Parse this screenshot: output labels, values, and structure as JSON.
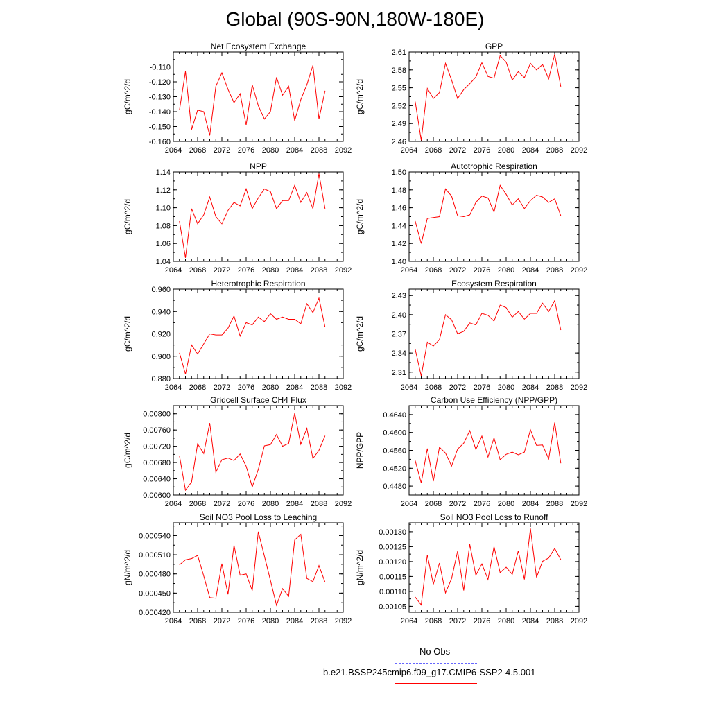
{
  "figure": {
    "title": "Global (90S-90N,180W-180E)"
  },
  "legend": {
    "obs_label": "No Obs",
    "obs_color": "#6666ff",
    "model_label": "b.e21.BSSP245cmip6.f09_g17.CMIP6-SSP2-4.5.001",
    "model_color": "#ff0000"
  },
  "chart_data": [
    {
      "type": "line",
      "title": "Net Ecosystem Exchange",
      "ylabel": "gC/m^2/d",
      "xlim": [
        2064,
        2092
      ],
      "xticks": [
        "2064",
        "2068",
        "2072",
        "2076",
        "2080",
        "2084",
        "2088",
        "2092"
      ],
      "ylim": [
        -0.16,
        -0.1
      ],
      "yticks": [
        "-0.110",
        "-0.120",
        "-0.130",
        "-0.140",
        "-0.150",
        "-0.160"
      ],
      "ytick_values": [
        -0.11,
        -0.12,
        -0.13,
        -0.14,
        -0.15,
        -0.16
      ],
      "x": [
        2065,
        2066,
        2067,
        2068,
        2069,
        2070,
        2071,
        2072,
        2073,
        2074,
        2075,
        2076,
        2077,
        2078,
        2079,
        2080,
        2081,
        2082,
        2083,
        2084,
        2085,
        2086,
        2087,
        2088,
        2089
      ],
      "series": [
        {
          "color": "#ff0000",
          "values": [
            -0.139,
            -0.113,
            -0.152,
            -0.139,
            -0.14,
            -0.156,
            -0.123,
            -0.114,
            -0.125,
            -0.134,
            -0.128,
            -0.149,
            -0.122,
            -0.136,
            -0.145,
            -0.14,
            -0.117,
            -0.129,
            -0.123,
            -0.146,
            -0.132,
            -0.122,
            -0.109,
            -0.145,
            -0.126
          ]
        }
      ]
    },
    {
      "type": "line",
      "title": "GPP",
      "ylabel": "gC/m^2/d",
      "xlim": [
        2064,
        2092
      ],
      "xticks": [
        "2064",
        "2068",
        "2072",
        "2076",
        "2080",
        "2084",
        "2088",
        "2092"
      ],
      "ylim": [
        2.46,
        2.61
      ],
      "yticks": [
        "2.61",
        "2.58",
        "2.55",
        "2.52",
        "2.49",
        "2.46"
      ],
      "ytick_values": [
        2.61,
        2.58,
        2.55,
        2.52,
        2.49,
        2.46
      ],
      "x": [
        2065,
        2066,
        2067,
        2068,
        2069,
        2070,
        2071,
        2072,
        2073,
        2074,
        2075,
        2076,
        2077,
        2078,
        2079,
        2080,
        2081,
        2082,
        2083,
        2084,
        2085,
        2086,
        2087,
        2088,
        2089
      ],
      "series": [
        {
          "color": "#ff0000",
          "values": [
            2.527,
            2.462,
            2.549,
            2.532,
            2.542,
            2.591,
            2.563,
            2.532,
            2.547,
            2.557,
            2.568,
            2.592,
            2.569,
            2.566,
            2.604,
            2.593,
            2.563,
            2.577,
            2.567,
            2.591,
            2.58,
            2.589,
            2.565,
            2.606,
            2.552
          ]
        }
      ]
    },
    {
      "type": "line",
      "title": "NPP",
      "ylabel": "gC/m^2/d",
      "xlim": [
        2064,
        2092
      ],
      "xticks": [
        "2064",
        "2068",
        "2072",
        "2076",
        "2080",
        "2084",
        "2088",
        "2092"
      ],
      "ylim": [
        1.04,
        1.14
      ],
      "yticks": [
        "1.14",
        "1.12",
        "1.10",
        "1.08",
        "1.06",
        "1.04"
      ],
      "ytick_values": [
        1.14,
        1.12,
        1.1,
        1.08,
        1.06,
        1.04
      ],
      "x": [
        2065,
        2066,
        2067,
        2068,
        2069,
        2070,
        2071,
        2072,
        2073,
        2074,
        2075,
        2076,
        2077,
        2078,
        2079,
        2080,
        2081,
        2082,
        2083,
        2084,
        2085,
        2086,
        2087,
        2088,
        2089
      ],
      "series": [
        {
          "color": "#ff0000",
          "values": [
            1.085,
            1.044,
            1.099,
            1.082,
            1.092,
            1.112,
            1.09,
            1.082,
            1.097,
            1.106,
            1.102,
            1.121,
            1.099,
            1.111,
            1.121,
            1.118,
            1.099,
            1.108,
            1.108,
            1.125,
            1.106,
            1.117,
            1.099,
            1.138,
            1.099
          ]
        }
      ]
    },
    {
      "type": "line",
      "title": "Autotrophic Respiration",
      "ylabel": "gC/m^2/d",
      "xlim": [
        2064,
        2092
      ],
      "xticks": [
        "2064",
        "2068",
        "2072",
        "2076",
        "2080",
        "2084",
        "2088",
        "2092"
      ],
      "ylim": [
        1.4,
        1.5
      ],
      "yticks": [
        "1.50",
        "1.48",
        "1.46",
        "1.44",
        "1.42",
        "1.40"
      ],
      "ytick_values": [
        1.5,
        1.48,
        1.46,
        1.44,
        1.42,
        1.4
      ],
      "x": [
        2065,
        2066,
        2067,
        2068,
        2069,
        2070,
        2071,
        2072,
        2073,
        2074,
        2075,
        2076,
        2077,
        2078,
        2079,
        2080,
        2081,
        2082,
        2083,
        2084,
        2085,
        2086,
        2087,
        2088,
        2089
      ],
      "series": [
        {
          "color": "#ff0000",
          "values": [
            1.445,
            1.42,
            1.448,
            1.449,
            1.45,
            1.481,
            1.473,
            1.451,
            1.45,
            1.452,
            1.466,
            1.473,
            1.471,
            1.455,
            1.485,
            1.475,
            1.463,
            1.47,
            1.459,
            1.468,
            1.474,
            1.472,
            1.466,
            1.47,
            1.451
          ]
        }
      ]
    },
    {
      "type": "line",
      "title": "Heterotrophic Respiration",
      "ylabel": "gC/m^2/d",
      "xlim": [
        2064,
        2092
      ],
      "xticks": [
        "2064",
        "2068",
        "2072",
        "2076",
        "2080",
        "2084",
        "2088",
        "2092"
      ],
      "ylim": [
        0.88,
        0.96
      ],
      "yticks": [
        "0.960",
        "0.940",
        "0.920",
        "0.900",
        "0.880"
      ],
      "ytick_values": [
        0.96,
        0.94,
        0.92,
        0.9,
        0.88
      ],
      "x": [
        2065,
        2066,
        2067,
        2068,
        2069,
        2070,
        2071,
        2072,
        2073,
        2074,
        2075,
        2076,
        2077,
        2078,
        2079,
        2080,
        2081,
        2082,
        2083,
        2084,
        2085,
        2086,
        2087,
        2088,
        2089
      ],
      "series": [
        {
          "color": "#ff0000",
          "values": [
            0.903,
            0.884,
            0.91,
            0.902,
            0.911,
            0.92,
            0.919,
            0.919,
            0.925,
            0.936,
            0.918,
            0.93,
            0.928,
            0.935,
            0.931,
            0.938,
            0.933,
            0.935,
            0.933,
            0.933,
            0.929,
            0.947,
            0.939,
            0.952,
            0.926
          ]
        }
      ]
    },
    {
      "type": "line",
      "title": "Ecosystem Respiration",
      "ylabel": "gC/m^2/d",
      "xlim": [
        2064,
        2092
      ],
      "xticks": [
        "2064",
        "2068",
        "2072",
        "2076",
        "2080",
        "2084",
        "2088",
        "2092"
      ],
      "ylim": [
        2.3,
        2.44
      ],
      "yticks": [
        "2.43",
        "2.40",
        "2.37",
        "2.34",
        "2.31"
      ],
      "ytick_values": [
        2.43,
        2.4,
        2.37,
        2.34,
        2.31
      ],
      "x": [
        2065,
        2066,
        2067,
        2068,
        2069,
        2070,
        2071,
        2072,
        2073,
        2074,
        2075,
        2076,
        2077,
        2078,
        2079,
        2080,
        2081,
        2082,
        2083,
        2084,
        2085,
        2086,
        2087,
        2088,
        2089
      ],
      "series": [
        {
          "color": "#ff0000",
          "values": [
            2.346,
            2.304,
            2.357,
            2.351,
            2.361,
            2.4,
            2.392,
            2.37,
            2.374,
            2.387,
            2.384,
            2.402,
            2.399,
            2.39,
            2.415,
            2.411,
            2.396,
            2.405,
            2.393,
            2.402,
            2.402,
            2.418,
            2.405,
            2.422,
            2.376
          ]
        }
      ]
    },
    {
      "type": "line",
      "title": "Gridcell Surface CH4 Flux",
      "ylabel": "gC/m^2/d",
      "xlim": [
        2064,
        2092
      ],
      "xticks": [
        "2064",
        "2068",
        "2072",
        "2076",
        "2080",
        "2084",
        "2088",
        "2092"
      ],
      "ylim": [
        0.006,
        0.0082
      ],
      "yticks": [
        "0.00800",
        "0.00760",
        "0.00720",
        "0.00680",
        "0.00640",
        "0.00600"
      ],
      "ytick_values": [
        0.008,
        0.0076,
        0.0072,
        0.0068,
        0.0064,
        0.006
      ],
      "x": [
        2065,
        2066,
        2067,
        2068,
        2069,
        2070,
        2071,
        2072,
        2073,
        2074,
        2075,
        2076,
        2077,
        2078,
        2079,
        2080,
        2081,
        2082,
        2083,
        2084,
        2085,
        2086,
        2087,
        2088,
        2089
      ],
      "series": [
        {
          "color": "#ff0000",
          "values": [
            0.00697,
            0.00612,
            0.00632,
            0.00726,
            0.00702,
            0.00777,
            0.00656,
            0.00687,
            0.00691,
            0.00685,
            0.00701,
            0.00671,
            0.0062,
            0.00663,
            0.00721,
            0.00724,
            0.00749,
            0.0072,
            0.00727,
            0.00801,
            0.00725,
            0.00764,
            0.0069,
            0.0071,
            0.00746
          ]
        }
      ]
    },
    {
      "type": "line",
      "title": "Carbon Use Efficiency (NPP/GPP)",
      "ylabel": "NPP/GPP",
      "xlim": [
        2064,
        2092
      ],
      "xticks": [
        "2064",
        "2068",
        "2072",
        "2076",
        "2080",
        "2084",
        "2088",
        "2092"
      ],
      "ylim": [
        0.446,
        0.466
      ],
      "yticks": [
        "0.4640",
        "0.4600",
        "0.4560",
        "0.4520",
        "0.4480"
      ],
      "ytick_values": [
        0.464,
        0.46,
        0.456,
        0.452,
        0.448
      ],
      "x": [
        2065,
        2066,
        2067,
        2068,
        2069,
        2070,
        2071,
        2072,
        2073,
        2074,
        2075,
        2076,
        2077,
        2078,
        2079,
        2080,
        2081,
        2082,
        2083,
        2084,
        2085,
        2086,
        2087,
        2088,
        2089
      ],
      "series": [
        {
          "color": "#ff0000",
          "values": [
            0.4537,
            0.4487,
            0.4564,
            0.4491,
            0.4567,
            0.4554,
            0.4525,
            0.4563,
            0.4576,
            0.4604,
            0.4562,
            0.4592,
            0.4545,
            0.4588,
            0.4539,
            0.4551,
            0.4556,
            0.455,
            0.4556,
            0.4606,
            0.4571,
            0.4572,
            0.4541,
            0.4622,
            0.4531
          ]
        }
      ]
    },
    {
      "type": "line",
      "title": "Soil NO3 Pool Loss to Leaching",
      "ylabel": "gN/m^2/d",
      "xlim": [
        2064,
        2092
      ],
      "xticks": [
        "2064",
        "2068",
        "2072",
        "2076",
        "2080",
        "2084",
        "2088",
        "2092"
      ],
      "ylim": [
        0.00042,
        0.00056
      ],
      "yticks": [
        "0.000540",
        "0.000510",
        "0.000480",
        "0.000450",
        "0.000420"
      ],
      "ytick_values": [
        0.00054,
        0.00051,
        0.00048,
        0.00045,
        0.00042
      ],
      "x": [
        2065,
        2066,
        2067,
        2068,
        2069,
        2070,
        2071,
        2072,
        2073,
        2074,
        2075,
        2076,
        2077,
        2078,
        2079,
        2080,
        2081,
        2082,
        2083,
        2084,
        2085,
        2086,
        2087,
        2088,
        2089
      ],
      "series": [
        {
          "color": "#ff0000",
          "values": [
            0.000494,
            0.000502,
            0.000504,
            0.000509,
            0.000477,
            0.000443,
            0.000442,
            0.000496,
            0.000448,
            0.000525,
            0.000478,
            0.00048,
            0.000454,
            0.000546,
            0.000508,
            0.00047,
            0.000431,
            0.000457,
            0.000445,
            0.000533,
            0.000542,
            0.000473,
            0.000468,
            0.000493,
            0.000467
          ]
        }
      ]
    },
    {
      "type": "line",
      "title": "Soil NO3 Pool Loss to Runoff",
      "ylabel": "gN/m^2/d",
      "xlim": [
        2064,
        2092
      ],
      "xticks": [
        "2064",
        "2068",
        "2072",
        "2076",
        "2080",
        "2084",
        "2088",
        "2092"
      ],
      "ylim": [
        0.00103,
        0.00133
      ],
      "yticks": [
        "0.00130",
        "0.00125",
        "0.00120",
        "0.00115",
        "0.00110",
        "0.00105"
      ],
      "ytick_values": [
        0.0013,
        0.00125,
        0.0012,
        0.00115,
        0.0011,
        0.00105
      ],
      "x": [
        2065,
        2066,
        2067,
        2068,
        2069,
        2070,
        2071,
        2072,
        2073,
        2074,
        2075,
        2076,
        2077,
        2078,
        2079,
        2080,
        2081,
        2082,
        2083,
        2084,
        2085,
        2086,
        2087,
        2088,
        2089
      ],
      "series": [
        {
          "color": "#ff0000",
          "values": [
            0.001081,
            0.001055,
            0.001222,
            0.001124,
            0.001195,
            0.001095,
            0.001143,
            0.001235,
            0.001103,
            0.001258,
            0.001154,
            0.001192,
            0.00114,
            0.00125,
            0.001163,
            0.001181,
            0.001157,
            0.001236,
            0.00114,
            0.001311,
            0.001147,
            0.001201,
            0.001212,
            0.001244,
            0.001206
          ]
        }
      ]
    }
  ]
}
